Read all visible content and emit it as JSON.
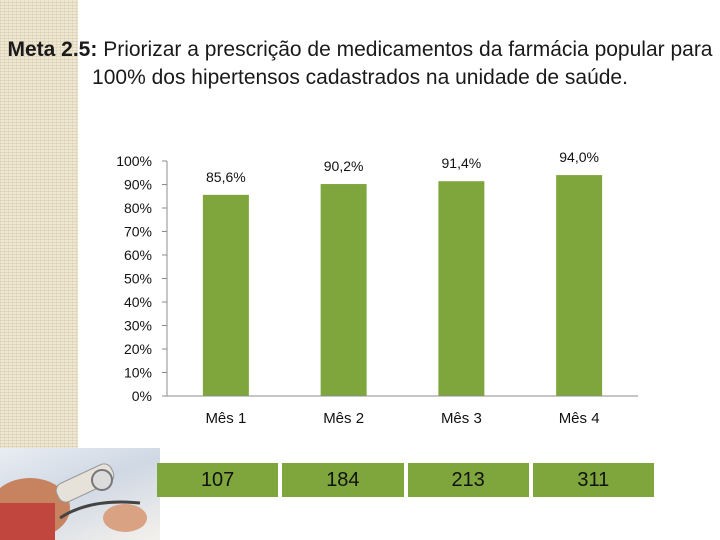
{
  "title": {
    "prefix": "Meta 2.5:",
    "text": "Priorizar a prescrição de medicamentos da farmácia popular para 100% dos hipertensos cadastrados na unidade de saúde."
  },
  "colors": {
    "bar": "#7ea63c",
    "table_cell": "#7ea63c"
  },
  "chart_data": {
    "type": "bar",
    "categories": [
      "Mês 1",
      "Mês 2",
      "Mês 3",
      "Mês 4"
    ],
    "values": [
      85.6,
      90.2,
      91.4,
      94.0
    ],
    "data_labels": [
      "85,6%",
      "90,2%",
      "91,4%",
      "94,0%"
    ],
    "ylim": [
      0,
      100
    ],
    "yticks": [
      0,
      10,
      20,
      30,
      40,
      50,
      60,
      70,
      80,
      90,
      100
    ],
    "ytick_labels": [
      "0%",
      "10%",
      "20%",
      "30%",
      "40%",
      "50%",
      "60%",
      "70%",
      "80%",
      "90%",
      "100%"
    ],
    "grid": false,
    "legend": "none"
  },
  "totals": [
    "107",
    "184",
    "213",
    "311"
  ],
  "decorations": {
    "photo_icon": "blood-pressure-photo-icon"
  }
}
